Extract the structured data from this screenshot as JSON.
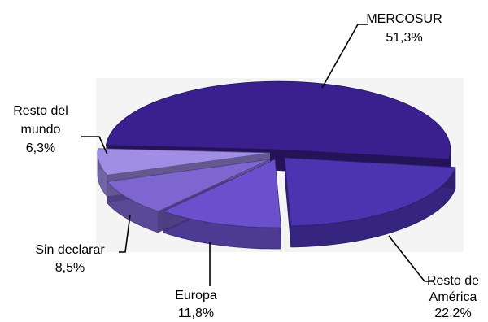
{
  "chart_data": {
    "type": "pie",
    "title": "",
    "labels": [
      {
        "lines": [
          "MERCOSUR"
        ],
        "value_text": "51,3%"
      },
      {
        "lines": [
          "Resto de",
          "América"
        ],
        "value_text": "22.2%"
      },
      {
        "lines": [
          "Europa"
        ],
        "value_text": "11,8%"
      },
      {
        "lines": [
          "Sin declarar"
        ],
        "value_text": "8,5%"
      },
      {
        "lines": [
          "Resto del",
          "mundo"
        ],
        "value_text": "6,3%"
      }
    ],
    "slices": [
      {
        "value": 51.3,
        "color": "#3a1f8e"
      },
      {
        "value": 22.2,
        "color": "#4a34b0"
      },
      {
        "value": 11.8,
        "color": "#6a50cc"
      },
      {
        "value": 8.5,
        "color": "#7d66d0"
      },
      {
        "value": 6.3,
        "color": "#a08ee6"
      }
    ]
  }
}
